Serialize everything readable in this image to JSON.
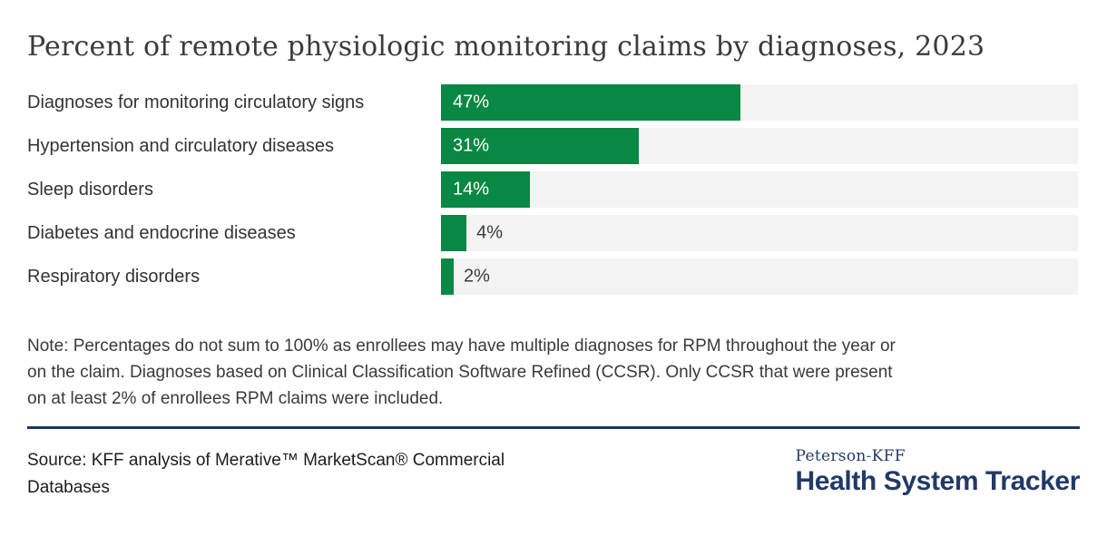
{
  "title": "Percent of remote physiologic monitoring claims by diagnoses, 2023",
  "chart_data": {
    "type": "bar",
    "orientation": "horizontal",
    "categories": [
      "Diagnoses for monitoring circulatory signs",
      "Hypertension and circulatory diseases",
      "Sleep disorders",
      "Diabetes and endocrine diseases",
      "Respiratory disorders"
    ],
    "values": [
      47,
      31,
      14,
      4,
      2
    ],
    "value_labels": [
      "47%",
      "31%",
      "14%",
      "4%",
      "2%"
    ],
    "xlim": [
      0,
      100
    ],
    "legend": "none",
    "grid": "off"
  },
  "note_lines": [
    "Note: Percentages do not sum to 100% as enrollees may have multiple diagnoses for RPM throughout the year or",
    "on the claim. Diagnoses based on Clinical Classification Software Refined (CCSR). Only CCSR that were present",
    "on at least 2% of enrollees RPM claims were included."
  ],
  "source_lines": [
    "Source: KFF analysis of Merative™ MarketScan® Commercial",
    "Databases"
  ],
  "logo": {
    "brand_prefix": "Peterson",
    "brand_hyphen": "-",
    "brand_suffix": "KFF",
    "brand_name": "Health System Tracker"
  },
  "colors": {
    "bar_green": "#088842",
    "track_gray": "#f3f3f3",
    "navy": "#223a67",
    "text_dark": "#333333"
  }
}
